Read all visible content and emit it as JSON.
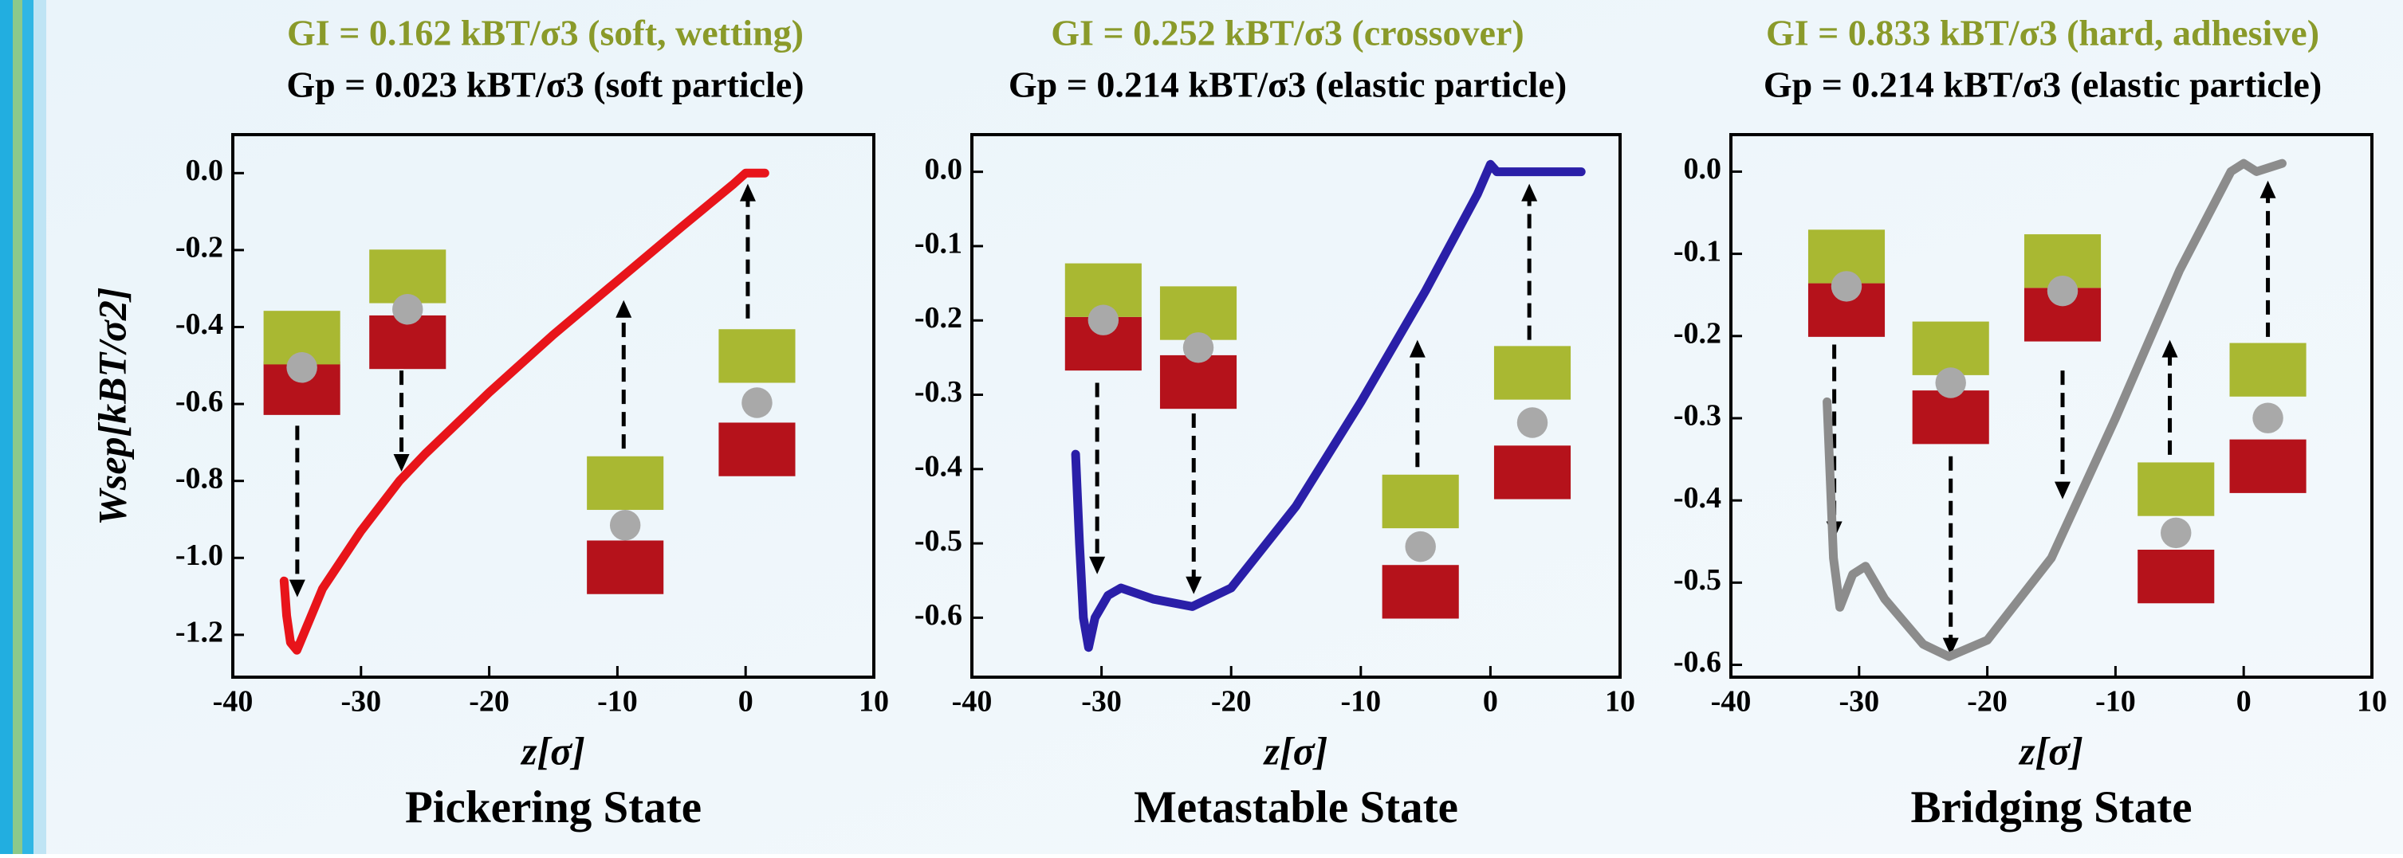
{
  "chart_data": [
    {
      "type": "line",
      "title": "GI = 0.162 kBT/σ3 (soft, wetting)",
      "subtitle": "Gp = 0.023 kBT/σ3 (soft particle)",
      "y_label": "Wsep[kBT/σ2]",
      "x_label": "z[σ]",
      "caption": "Pickering State",
      "color": "#e8141a",
      "x": [
        -36,
        -35.8,
        -35.5,
        -35,
        -34.5,
        -33,
        -30,
        -27,
        -25,
        -20,
        -15,
        -10,
        -5,
        -1,
        0,
        0.5,
        1.5
      ],
      "values": [
        -1.06,
        -1.15,
        -1.22,
        -1.24,
        -1.2,
        -1.08,
        -0.93,
        -0.8,
        -0.73,
        -0.57,
        -0.42,
        -0.28,
        -0.14,
        -0.03,
        0,
        0,
        0
      ],
      "xlim": [
        -40,
        10
      ],
      "xticks": [
        -40,
        -30,
        -20,
        -10,
        0,
        10
      ],
      "ylim": [
        -1.31,
        0.1
      ],
      "yticks": [
        {
          "value": 0,
          "label": "0.0"
        },
        -0.2,
        -0.4,
        -0.6,
        -0.8,
        {
          "value": -1,
          "label": "-1.0"
        },
        -1.2
      ]
    },
    {
      "type": "line",
      "title": "GI = 0.252 kBT/σ3 (crossover)",
      "subtitle": "Gp = 0.214 kBT/σ3 (elastic particle)",
      "x_label": "z[σ]",
      "caption": "Metastable State",
      "color": "#2a1fa8",
      "x": [
        -32,
        -31.7,
        -31.4,
        -31,
        -30.5,
        -29.5,
        -28.5,
        -26,
        -23,
        -20,
        -15,
        -10,
        -5,
        -1,
        0,
        0.5,
        7
      ],
      "values": [
        -0.38,
        -0.5,
        -0.6,
        -0.64,
        -0.6,
        -0.57,
        -0.56,
        -0.575,
        -0.585,
        -0.56,
        -0.45,
        -0.31,
        -0.16,
        -0.03,
        0.01,
        0,
        0
      ],
      "xlim": [
        -40,
        10
      ],
      "xticks": [
        -40,
        -30,
        -20,
        -10,
        0,
        10
      ],
      "ylim": [
        -0.68,
        0.05
      ],
      "yticks": [
        {
          "value": 0,
          "label": "0.0"
        },
        -0.1,
        -0.2,
        -0.3,
        -0.4,
        -0.5,
        -0.6
      ]
    },
    {
      "type": "line",
      "title": "GI = 0.833 kBT/σ3 (hard, adhesive)",
      "subtitle": "Gp = 0.214 kBT/σ3 (elastic particle)",
      "x_label": "z[σ]",
      "caption": "Bridging State",
      "color": "#8c8c8c",
      "x": [
        -32.5,
        -32,
        -31.5,
        -30.5,
        -29.5,
        -28,
        -25,
        -23,
        -20,
        -15,
        -10,
        -5,
        -1,
        0,
        1,
        3
      ],
      "values": [
        -0.28,
        -0.47,
        -0.53,
        -0.49,
        -0.48,
        -0.52,
        -0.575,
        -0.59,
        -0.57,
        -0.47,
        -0.3,
        -0.12,
        0,
        0.01,
        0,
        0.01
      ],
      "xlim": [
        -40,
        10
      ],
      "xticks": [
        -40,
        -30,
        -20,
        -10,
        0,
        10
      ],
      "ylim": [
        -0.615,
        0.045
      ],
      "yticks": [
        {
          "value": 0,
          "label": "0.0"
        },
        -0.1,
        -0.2,
        -0.3,
        -0.4,
        -0.5,
        -0.6
      ]
    }
  ]
}
